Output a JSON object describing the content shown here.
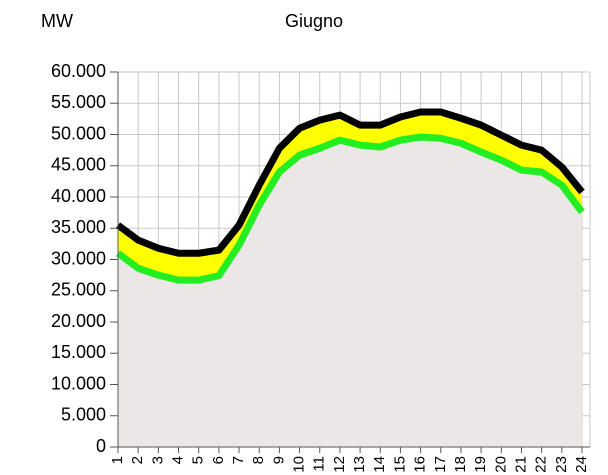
{
  "chart_data": {
    "type": "band",
    "title": "Giugno",
    "y_label": "MW",
    "categories": [
      "1",
      "2",
      "3",
      "4",
      "5",
      "6",
      "7",
      "8",
      "9",
      "10",
      "11",
      "12",
      "13",
      "14",
      "15",
      "16",
      "17",
      "18",
      "19",
      "20",
      "21",
      "22",
      "23",
      "24"
    ],
    "series": [
      {
        "color": "#000000",
        "values": [
          35500,
          33100,
          31800,
          31000,
          31000,
          31500,
          35500,
          41900,
          47800,
          51000,
          52300,
          53100,
          51500,
          51500,
          52800,
          53600,
          53600,
          52600,
          51500,
          49900,
          48300,
          47500,
          44800,
          40800
        ]
      },
      {
        "color": "#22ee22",
        "values": [
          31000,
          28600,
          27500,
          26700,
          26700,
          27400,
          32300,
          38700,
          44000,
          46700,
          47800,
          49100,
          48300,
          48000,
          49100,
          49600,
          49400,
          48600,
          47200,
          45900,
          44300,
          44000,
          41900,
          37600
        ]
      }
    ],
    "band_color": "#ffff00",
    "fill_color": "#ebe7e7",
    "ylim": [
      0,
      60000
    ],
    "yticks": [
      0,
      {
        "value": 5000,
        "label": "5.000"
      },
      {
        "value": 10000,
        "label": "10.000"
      },
      {
        "value": 15000,
        "label": "15.000"
      },
      {
        "value": 20000,
        "label": "20.000"
      },
      {
        "value": 25000,
        "label": "25.000"
      },
      {
        "value": 30000,
        "label": "30.000"
      },
      {
        "value": 35000,
        "label": "35.000"
      },
      {
        "value": 40000,
        "label": "40.000"
      },
      {
        "value": 45000,
        "label": "45.000"
      },
      {
        "value": 50000,
        "label": "50.000"
      },
      {
        "value": 55000,
        "label": "55.000"
      },
      {
        "value": 60000,
        "label": "60.000"
      }
    ],
    "grid": true
  }
}
